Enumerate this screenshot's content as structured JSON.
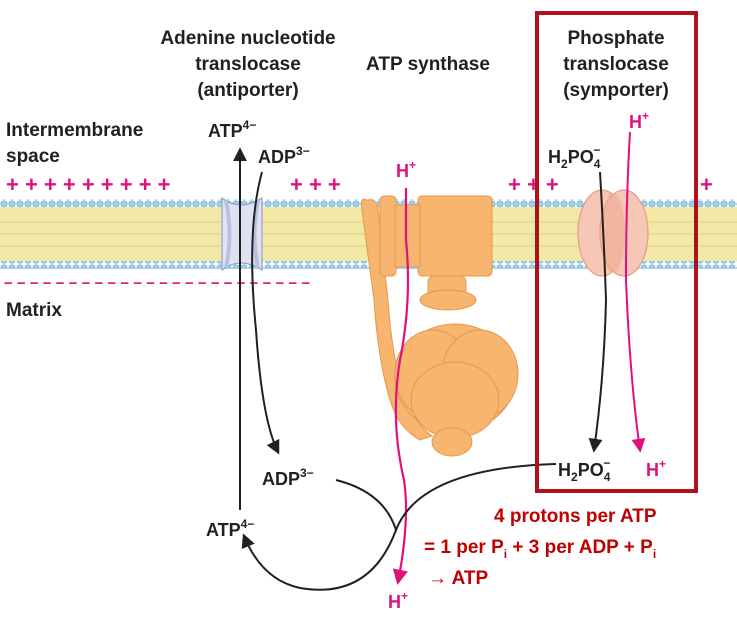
{
  "labels": {
    "ant_line1": "Adenine nucleotide",
    "ant_line2": "translocase",
    "ant_line3": "(antiporter)",
    "atp_synthase": "ATP synthase",
    "pt_line1": "Phosphate",
    "pt_line2": "translocase",
    "pt_line3": "(symporter)",
    "ims_line1": "Intermembrane",
    "ims_line2": "space",
    "matrix": "Matrix"
  },
  "species": {
    "atp": "ATP",
    "atp_charge": "4−",
    "adp": "ADP",
    "adp_charge": "3−",
    "h": "H",
    "h_charge": "+",
    "phosphate_h2": "H",
    "phosphate_sub2": "2",
    "phosphate_po": "PO",
    "phosphate_sub4": "4",
    "phosphate_charge": "−"
  },
  "membrane": {
    "ims_charges": [
      "+ + + + + + + + +",
      "+ + +",
      "+ + +",
      "+"
    ],
    "matrix_charges": "− − − − − − − − − − − − − − − − − − − − − − − −"
  },
  "annotation": {
    "line1": "4 protons per ATP",
    "line2_a": "= 1 per P",
    "line2_i1": "i",
    "line2_b": " + 3 per ADP + P",
    "line2_i2": "i",
    "line3": "→ ATP"
  },
  "colors": {
    "proton": "#e0117a",
    "highlight_box": "#b0101a",
    "annotation": "#c00000",
    "atp_synthase": "#f8b56f",
    "membrane_head": "#9fd0ec",
    "membrane_tail": "#f3e9a6",
    "antiporter": "#dfe2f3",
    "symporter": "#f6c7b7"
  }
}
